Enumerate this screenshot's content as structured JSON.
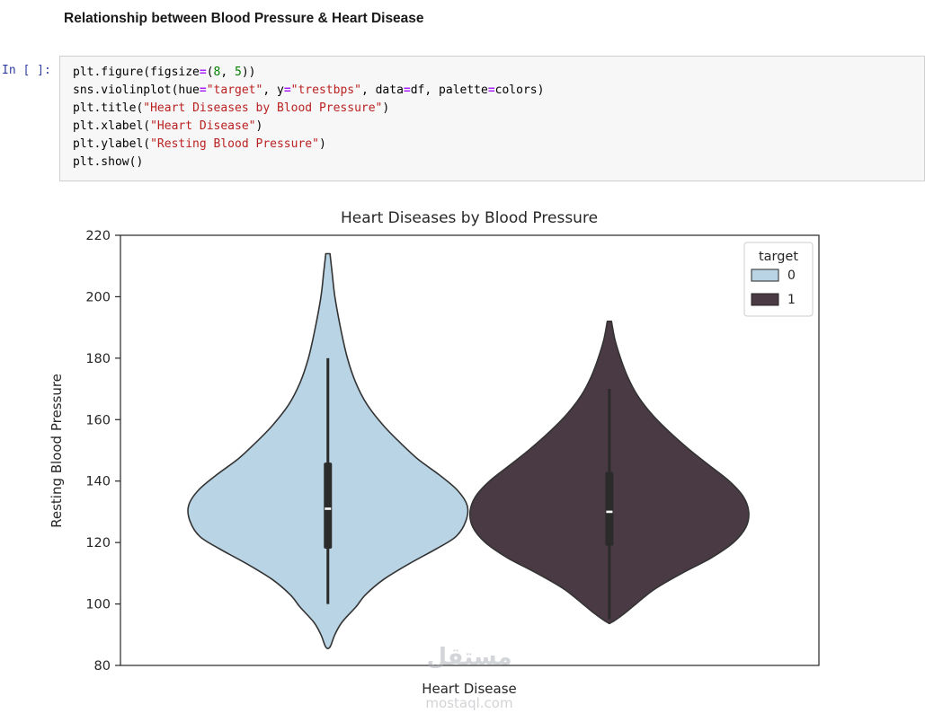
{
  "notebook": {
    "heading": "Relationship between Blood Pressure & Heart Disease",
    "prompt": "In [ ]:",
    "code_lines": [
      [
        {
          "t": "plt.figure(figsize",
          "c": "p"
        },
        {
          "t": "=",
          "c": "o"
        },
        {
          "t": "(",
          "c": "p"
        },
        {
          "t": "8",
          "c": "n"
        },
        {
          "t": ", ",
          "c": "p"
        },
        {
          "t": "5",
          "c": "n"
        },
        {
          "t": "))",
          "c": "p"
        }
      ],
      [
        {
          "t": "sns.violinplot(hue",
          "c": "p"
        },
        {
          "t": "=",
          "c": "o"
        },
        {
          "t": "\"target\"",
          "c": "s"
        },
        {
          "t": ", y",
          "c": "p"
        },
        {
          "t": "=",
          "c": "o"
        },
        {
          "t": "\"trestbps\"",
          "c": "s"
        },
        {
          "t": ", data",
          "c": "p"
        },
        {
          "t": "=",
          "c": "o"
        },
        {
          "t": "df, palette",
          "c": "p"
        },
        {
          "t": "=",
          "c": "o"
        },
        {
          "t": "colors)",
          "c": "p"
        }
      ],
      [
        {
          "t": "plt.title(",
          "c": "p"
        },
        {
          "t": "\"Heart Diseases by Blood Pressure\"",
          "c": "s"
        },
        {
          "t": ")",
          "c": "p"
        }
      ],
      [
        {
          "t": "plt.xlabel(",
          "c": "p"
        },
        {
          "t": "\"Heart Disease\"",
          "c": "s"
        },
        {
          "t": ")",
          "c": "p"
        }
      ],
      [
        {
          "t": "plt.ylabel(",
          "c": "p"
        },
        {
          "t": "\"Resting Blood Pressure\"",
          "c": "s"
        },
        {
          "t": ")",
          "c": "p"
        }
      ],
      [
        {
          "t": "plt.show()",
          "c": "p"
        }
      ]
    ]
  },
  "chart_data": {
    "type": "violin",
    "title": "Heart Diseases by Blood Pressure",
    "xlabel": "Heart Disease",
    "ylabel": "Resting Blood Pressure",
    "ylim": [
      80,
      220
    ],
    "yticks": [
      80,
      100,
      120,
      140,
      160,
      180,
      200,
      220
    ],
    "grid": false,
    "edge_color": "#333333",
    "violin_halfwidth_frac": 0.1995,
    "legend": {
      "title": "target",
      "position": "upper right",
      "entries": [
        {
          "label": "0",
          "color": "#b9d4e4"
        },
        {
          "label": "1",
          "color": "#4a3a44"
        }
      ]
    },
    "series": [
      {
        "name": "0",
        "color": "#b9d4e4",
        "center_frac": 0.297,
        "range": [
          86,
          214
        ],
        "box": {
          "whisker_low": 100,
          "q1": 118,
          "median": 131,
          "q3": 146,
          "whisker_high": 180
        },
        "profile": [
          [
            214,
            0.015
          ],
          [
            208,
            0.03
          ],
          [
            200,
            0.05
          ],
          [
            190,
            0.09
          ],
          [
            180,
            0.14
          ],
          [
            172,
            0.2
          ],
          [
            165,
            0.28
          ],
          [
            158,
            0.4
          ],
          [
            152,
            0.53
          ],
          [
            147,
            0.65
          ],
          [
            142,
            0.8
          ],
          [
            137,
            0.93
          ],
          [
            132,
            1.0
          ],
          [
            127,
            0.99
          ],
          [
            122,
            0.92
          ],
          [
            118,
            0.78
          ],
          [
            113,
            0.58
          ],
          [
            108,
            0.4
          ],
          [
            103,
            0.27
          ],
          [
            99,
            0.2
          ],
          [
            94,
            0.1
          ],
          [
            90,
            0.05
          ],
          [
            86,
            0.015
          ]
        ]
      },
      {
        "name": "1",
        "color": "#4a3a44",
        "center_frac": 0.7,
        "range": [
          94,
          192
        ],
        "box": {
          "whisker_low": 95,
          "q1": 119,
          "median": 130,
          "q3": 143,
          "whisker_high": 170
        },
        "profile": [
          [
            192,
            0.015
          ],
          [
            186,
            0.04
          ],
          [
            180,
            0.08
          ],
          [
            174,
            0.13
          ],
          [
            168,
            0.2
          ],
          [
            162,
            0.3
          ],
          [
            156,
            0.43
          ],
          [
            150,
            0.58
          ],
          [
            145,
            0.72
          ],
          [
            140,
            0.86
          ],
          [
            135,
            0.96
          ],
          [
            130,
            1.0
          ],
          [
            125,
            0.98
          ],
          [
            120,
            0.89
          ],
          [
            115,
            0.73
          ],
          [
            110,
            0.52
          ],
          [
            105,
            0.33
          ],
          [
            100,
            0.19
          ],
          [
            97,
            0.11
          ],
          [
            94,
            0.015
          ]
        ]
      }
    ],
    "watermark": {
      "line1": "مستقل",
      "line2": "mostaql.com"
    }
  }
}
